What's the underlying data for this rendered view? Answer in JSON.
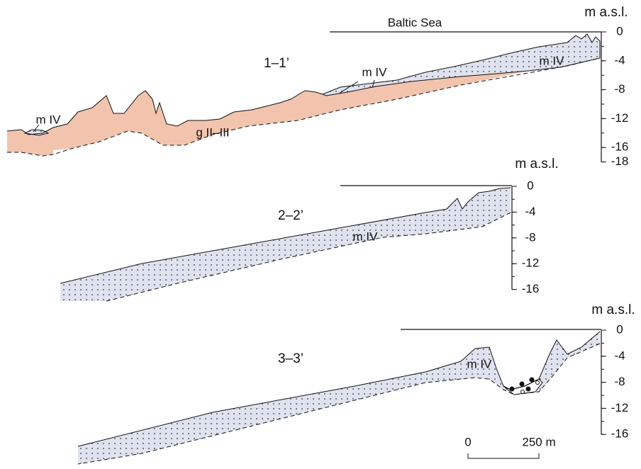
{
  "sea_label": "Baltic Sea",
  "sections": [
    {
      "label": "1–1’",
      "axis_title": "m a.s.l.",
      "ticks": [
        0,
        -4,
        -8,
        -12,
        -16,
        -18
      ],
      "units": [
        "m IV",
        "m IV",
        "m IV",
        "g II–III"
      ]
    },
    {
      "label": "2–2’",
      "axis_title": "m a.s.l.",
      "ticks": [
        0,
        -4,
        -8,
        -12,
        -16
      ],
      "units": [
        "m IV"
      ]
    },
    {
      "label": "3–3’",
      "axis_title": "m a.s.l.",
      "ticks": [
        0,
        -4,
        -8,
        -12,
        -16
      ],
      "units": [
        "m IV"
      ]
    }
  ],
  "scale_bar": {
    "start": "0",
    "end": "250 m"
  }
}
